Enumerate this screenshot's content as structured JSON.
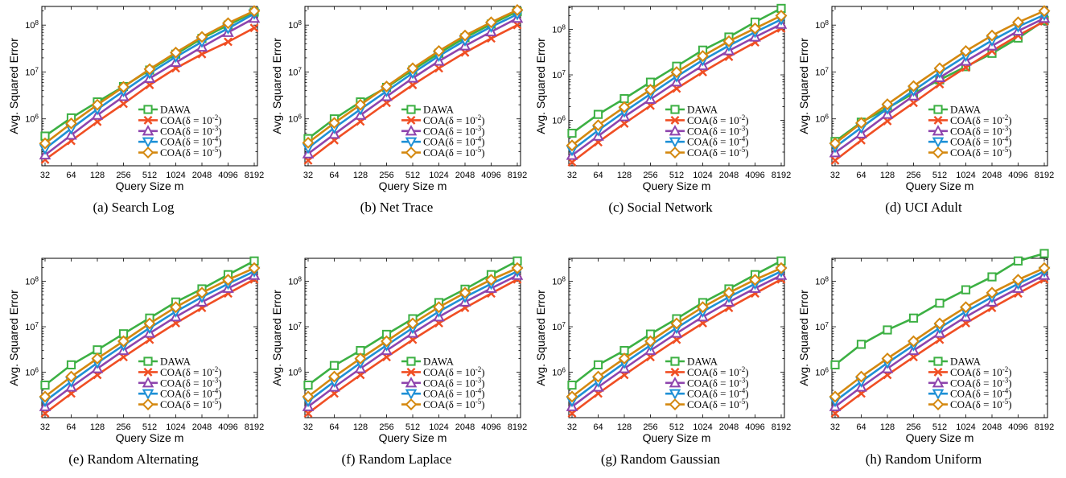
{
  "colors": {
    "DAWA": "#3cb043",
    "COA(δ = 10^-2)": "#f04e23",
    "COA(δ = 10^-3)": "#8e44ad",
    "COA(δ = 10^-4)": "#1e90d6",
    "COA(δ = 10^-5)": "#d4880f"
  },
  "markers": {
    "DAWA": "square",
    "COA(δ = 10^-2)": "x",
    "COA(δ = 10^-3)": "triangle-up",
    "COA(δ = 10^-4)": "triangle-down",
    "COA(δ = 10^-5)": "diamond"
  },
  "chart_data": [
    {
      "type": "line",
      "caption": "(a) Search Log",
      "xlabel": "Query Size m",
      "ylabel": "Avg. Squared Error",
      "yscale": "log",
      "ylim": [
        100000,
        250000000
      ],
      "y_ticks": [
        1000000,
        10000000,
        100000000
      ],
      "y_tick_labels": [
        "10^6",
        "10^7",
        "10^8"
      ],
      "x_categories": [
        "32",
        "64",
        "128",
        "256",
        "512",
        "1024",
        "2048",
        "4096",
        "8192"
      ],
      "legend_position": "lower-right",
      "series": [
        {
          "name": "DAWA",
          "values": [
            430000,
            1050000,
            2300000,
            4900000,
            11000000,
            24000000,
            52000000,
            100000000,
            190000000
          ]
        },
        {
          "name": "COA(δ = 10^-2)",
          "values": [
            135000,
            340000,
            870000,
            2100000,
            5300000,
            12000000,
            24000000,
            44000000,
            87000000
          ]
        },
        {
          "name": "COA(δ = 10^-3)",
          "values": [
            170000,
            450000,
            1200000,
            3000000,
            7300000,
            16000000,
            34000000,
            70000000,
            140000000
          ]
        },
        {
          "name": "COA(δ = 10^-4)",
          "values": [
            230000,
            620000,
            1600000,
            3900000,
            9400000,
            21000000,
            44000000,
            85000000,
            175000000
          ]
        },
        {
          "name": "COA(δ = 10^-5)",
          "values": [
            300000,
            800000,
            2000000,
            4800000,
            11500000,
            26000000,
            56000000,
            110000000,
            200000000
          ]
        }
      ]
    },
    {
      "type": "line",
      "caption": "(b) Net Trace",
      "xlabel": "Query Size m",
      "ylabel": "Avg. Squared Error",
      "yscale": "log",
      "ylim": [
        100000,
        250000000
      ],
      "y_ticks": [
        1000000,
        10000000,
        100000000
      ],
      "y_tick_labels": [
        "10^6",
        "10^7",
        "10^8"
      ],
      "x_categories": [
        "32",
        "64",
        "128",
        "256",
        "512",
        "1024",
        "2048",
        "4096",
        "8192"
      ],
      "legend_position": "lower-right",
      "series": [
        {
          "name": "DAWA",
          "values": [
            380000,
            1000000,
            2300000,
            4700000,
            11000000,
            25000000,
            54000000,
            105000000,
            195000000
          ]
        },
        {
          "name": "COA(δ = 10^-2)",
          "values": [
            130000,
            350000,
            880000,
            2200000,
            5300000,
            12000000,
            26000000,
            52000000,
            100000000
          ]
        },
        {
          "name": "COA(δ = 10^-3)",
          "values": [
            180000,
            470000,
            1200000,
            3000000,
            7400000,
            17000000,
            36000000,
            72000000,
            140000000
          ]
        },
        {
          "name": "COA(δ = 10^-4)",
          "values": [
            240000,
            640000,
            1600000,
            3900000,
            9500000,
            22000000,
            47000000,
            92000000,
            170000000
          ]
        },
        {
          "name": "COA(δ = 10^-5)",
          "values": [
            310000,
            820000,
            2000000,
            4900000,
            12000000,
            28000000,
            60000000,
            115000000,
            210000000
          ]
        }
      ]
    },
    {
      "type": "line",
      "caption": "(c) Social Network",
      "xlabel": "Query Size m",
      "ylabel": "Avg. Squared Error",
      "yscale": "log",
      "ylim": [
        100000,
        320000000
      ],
      "y_ticks": [
        1000000,
        10000000,
        100000000
      ],
      "y_tick_labels": [
        "10^6",
        "10^7",
        "10^8"
      ],
      "x_categories": [
        "32",
        "64",
        "128",
        "256",
        "512",
        "1024",
        "2048",
        "4096",
        "8192"
      ],
      "legend_position": "lower-right",
      "series": [
        {
          "name": "DAWA",
          "values": [
            520000,
            1350000,
            3000000,
            6900000,
            15500000,
            35000000,
            68000000,
            145000000,
            290000000
          ]
        },
        {
          "name": "COA(δ = 10^-2)",
          "values": [
            120000,
            330000,
            850000,
            2100000,
            5000000,
            11500000,
            25000000,
            52000000,
            105000000
          ]
        },
        {
          "name": "COA(δ = 10^-3)",
          "values": [
            170000,
            450000,
            1200000,
            2900000,
            7000000,
            16000000,
            34000000,
            68000000,
            130000000
          ]
        },
        {
          "name": "COA(δ = 10^-4)",
          "values": [
            220000,
            600000,
            1550000,
            3800000,
            9200000,
            21000000,
            44000000,
            87000000,
            165000000
          ]
        },
        {
          "name": "COA(δ = 10^-5)",
          "values": [
            280000,
            780000,
            1950000,
            4700000,
            11500000,
            26000000,
            55000000,
            105000000,
            200000000
          ]
        }
      ]
    },
    {
      "type": "line",
      "caption": "(d) UCI Adult",
      "xlabel": "Query Size m",
      "ylabel": "Avg. Squared Error",
      "yscale": "log",
      "ylim": [
        100000,
        250000000
      ],
      "y_ticks": [
        1000000,
        10000000,
        100000000
      ],
      "y_tick_labels": [
        "10^6",
        "10^7",
        "10^8"
      ],
      "x_categories": [
        "32",
        "64",
        "128",
        "256",
        "512",
        "1024",
        "2048",
        "4096",
        "8192"
      ],
      "legend_position": "lower-right",
      "series": [
        {
          "name": "DAWA",
          "values": [
            330000,
            850000,
            1700000,
            3500000,
            6800000,
            13000000,
            25000000,
            53000000,
            125000000
          ]
        },
        {
          "name": "COA(δ = 10^-2)",
          "values": [
            130000,
            350000,
            900000,
            2200000,
            5500000,
            12500000,
            28000000,
            60000000,
            120000000
          ]
        },
        {
          "name": "COA(δ = 10^-3)",
          "values": [
            190000,
            480000,
            1250000,
            3100000,
            7600000,
            17000000,
            36000000,
            75000000,
            140000000
          ]
        },
        {
          "name": "COA(δ = 10^-4)",
          "values": [
            250000,
            650000,
            1650000,
            4000000,
            9700000,
            22000000,
            47000000,
            93000000,
            165000000
          ]
        },
        {
          "name": "COA(δ = 10^-5)",
          "values": [
            300000,
            820000,
            2050000,
            5000000,
            12000000,
            28000000,
            60000000,
            115000000,
            200000000
          ]
        }
      ]
    },
    {
      "type": "line",
      "caption": "(e) Random Alternating",
      "xlabel": "Query Size m",
      "ylabel": "Avg. Squared Error",
      "yscale": "log",
      "ylim": [
        100000,
        320000000
      ],
      "y_ticks": [
        1000000,
        10000000,
        100000000
      ],
      "y_tick_labels": [
        "10^6",
        "10^7",
        "10^8"
      ],
      "x_categories": [
        "32",
        "64",
        "128",
        "256",
        "512",
        "1024",
        "2048",
        "4096",
        "8192"
      ],
      "legend_position": "lower-right",
      "series": [
        {
          "name": "DAWA",
          "values": [
            520000,
            1450000,
            3100000,
            7000000,
            15500000,
            35000000,
            68000000,
            140000000,
            280000000
          ]
        },
        {
          "name": "COA(δ = 10^-2)",
          "values": [
            125000,
            340000,
            870000,
            2150000,
            5200000,
            12000000,
            26000000,
            54000000,
            110000000
          ]
        },
        {
          "name": "COA(δ = 10^-3)",
          "values": [
            175000,
            470000,
            1200000,
            3000000,
            7200000,
            16500000,
            35000000,
            70000000,
            135000000
          ]
        },
        {
          "name": "COA(δ = 10^-4)",
          "values": [
            230000,
            620000,
            1600000,
            3900000,
            9400000,
            21500000,
            45000000,
            88000000,
            165000000
          ]
        },
        {
          "name": "COA(δ = 10^-5)",
          "values": [
            290000,
            800000,
            2000000,
            4800000,
            11800000,
            27000000,
            56000000,
            108000000,
            195000000
          ]
        }
      ]
    },
    {
      "type": "line",
      "caption": "(f) Random Laplace",
      "xlabel": "Query Size m",
      "ylabel": "Avg. Squared Error",
      "yscale": "log",
      "ylim": [
        100000,
        320000000
      ],
      "y_ticks": [
        1000000,
        10000000,
        100000000
      ],
      "y_tick_labels": [
        "10^6",
        "10^7",
        "10^8"
      ],
      "x_categories": [
        "32",
        "64",
        "128",
        "256",
        "512",
        "1024",
        "2048",
        "4096",
        "8192"
      ],
      "legend_position": "lower-right",
      "series": [
        {
          "name": "DAWA",
          "values": [
            520000,
            1400000,
            3000000,
            6800000,
            15000000,
            34000000,
            67000000,
            140000000,
            280000000
          ]
        },
        {
          "name": "COA(δ = 10^-2)",
          "values": [
            125000,
            340000,
            870000,
            2150000,
            5200000,
            12000000,
            26000000,
            54000000,
            110000000
          ]
        },
        {
          "name": "COA(δ = 10^-3)",
          "values": [
            175000,
            470000,
            1200000,
            3000000,
            7200000,
            16500000,
            35000000,
            70000000,
            135000000
          ]
        },
        {
          "name": "COA(δ = 10^-4)",
          "values": [
            230000,
            620000,
            1600000,
            3900000,
            9400000,
            21500000,
            45000000,
            88000000,
            165000000
          ]
        },
        {
          "name": "COA(δ = 10^-5)",
          "values": [
            290000,
            800000,
            2000000,
            4800000,
            11800000,
            27000000,
            56000000,
            108000000,
            195000000
          ]
        }
      ]
    },
    {
      "type": "line",
      "caption": "(g) Random Gaussian",
      "xlabel": "Query Size m",
      "ylabel": "Avg. Squared Error",
      "yscale": "log",
      "ylim": [
        100000,
        320000000
      ],
      "y_ticks": [
        1000000,
        10000000,
        100000000
      ],
      "y_tick_labels": [
        "10^6",
        "10^7",
        "10^8"
      ],
      "x_categories": [
        "32",
        "64",
        "128",
        "256",
        "512",
        "1024",
        "2048",
        "4096",
        "8192"
      ],
      "legend_position": "lower-right",
      "series": [
        {
          "name": "DAWA",
          "values": [
            520000,
            1450000,
            3000000,
            6900000,
            15000000,
            34000000,
            68000000,
            140000000,
            280000000
          ]
        },
        {
          "name": "COA(δ = 10^-2)",
          "values": [
            125000,
            340000,
            870000,
            2150000,
            5200000,
            12000000,
            26000000,
            54000000,
            110000000
          ]
        },
        {
          "name": "COA(δ = 10^-3)",
          "values": [
            175000,
            470000,
            1200000,
            3000000,
            7200000,
            16500000,
            35000000,
            70000000,
            135000000
          ]
        },
        {
          "name": "COA(δ = 10^-4)",
          "values": [
            230000,
            620000,
            1600000,
            3900000,
            9400000,
            21500000,
            45000000,
            88000000,
            165000000
          ]
        },
        {
          "name": "COA(δ = 10^-5)",
          "values": [
            290000,
            800000,
            2000000,
            4800000,
            11800000,
            27000000,
            56000000,
            108000000,
            195000000
          ]
        }
      ]
    },
    {
      "type": "line",
      "caption": "(h) Random Uniform",
      "xlabel": "Query Size m",
      "ylabel": "Avg. Squared Error",
      "yscale": "log",
      "ylim": [
        100000,
        320000000
      ],
      "y_ticks": [
        1000000,
        10000000,
        100000000
      ],
      "y_tick_labels": [
        "10^6",
        "10^7",
        "10^8"
      ],
      "x_categories": [
        "32",
        "64",
        "128",
        "256",
        "512",
        "1024",
        "2048",
        "4096",
        "8192"
      ],
      "legend_position": "lower-right",
      "series": [
        {
          "name": "DAWA",
          "values": [
            1450000,
            4100000,
            8500000,
            15500000,
            33000000,
            65000000,
            125000000,
            280000000,
            560000000
          ]
        },
        {
          "name": "COA(δ = 10^-2)",
          "values": [
            125000,
            340000,
            870000,
            2150000,
            5200000,
            12000000,
            26000000,
            54000000,
            110000000
          ]
        },
        {
          "name": "COA(δ = 10^-3)",
          "values": [
            175000,
            470000,
            1200000,
            3000000,
            7200000,
            16500000,
            35000000,
            70000000,
            135000000
          ]
        },
        {
          "name": "COA(δ = 10^-4)",
          "values": [
            230000,
            620000,
            1600000,
            3900000,
            9400000,
            21500000,
            45000000,
            88000000,
            165000000
          ]
        },
        {
          "name": "COA(δ = 10^-5)",
          "values": [
            290000,
            800000,
            2000000,
            4800000,
            11800000,
            27000000,
            56000000,
            108000000,
            195000000
          ]
        }
      ]
    }
  ]
}
